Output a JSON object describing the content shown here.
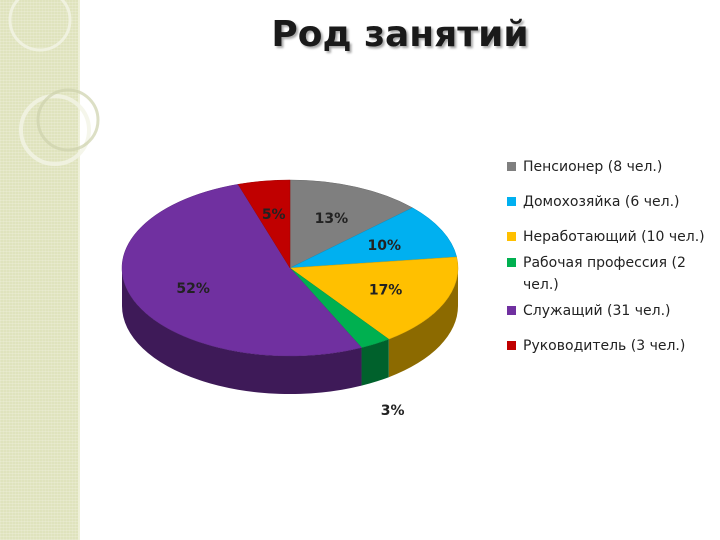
{
  "title": "Род занятий",
  "chart_data": {
    "type": "pie",
    "style": "3d",
    "slices": [
      {
        "label": "Пенсионер (8 чел.)",
        "value": 13,
        "count": 8,
        "pct_label": "13%",
        "color": "#7f7f7f"
      },
      {
        "label": "Домохозяйка (6 чел.)",
        "value": 10,
        "count": 6,
        "pct_label": "10%",
        "color": "#00b0f0"
      },
      {
        "label": "Неработающий (10 чел.)",
        "value": 17,
        "count": 10,
        "pct_label": "17%",
        "color": "#ffc000"
      },
      {
        "label": "Рабочая профессия (2 чел.)",
        "value": 3,
        "count": 2,
        "pct_label": "3%",
        "color": "#00b050"
      },
      {
        "label": "Служащий (31 чел.)",
        "value": 52,
        "count": 31,
        "pct_label": "52%",
        "color": "#7030a0"
      },
      {
        "label": "Руководитель (3 чел.)",
        "value": 5,
        "count": 3,
        "pct_label": "5%",
        "color": "#c00000"
      }
    ],
    "legend_position": "right"
  },
  "legend": {
    "items": [
      {
        "label": "Пенсионер (8 чел.)",
        "color": "#7f7f7f"
      },
      {
        "label": "Домохозяйка (6 чел.)",
        "color": "#00b0f0"
      },
      {
        "label": "Неработающий (10 чел.)",
        "color": "#ffc000"
      },
      {
        "label": "Рабочая профессия (2 чел.)",
        "color": "#00b050"
      },
      {
        "label": "Служащий (31 чел.)",
        "color": "#7030a0"
      },
      {
        "label": "Руководитель (3 чел.)",
        "color": "#c00000"
      }
    ]
  }
}
